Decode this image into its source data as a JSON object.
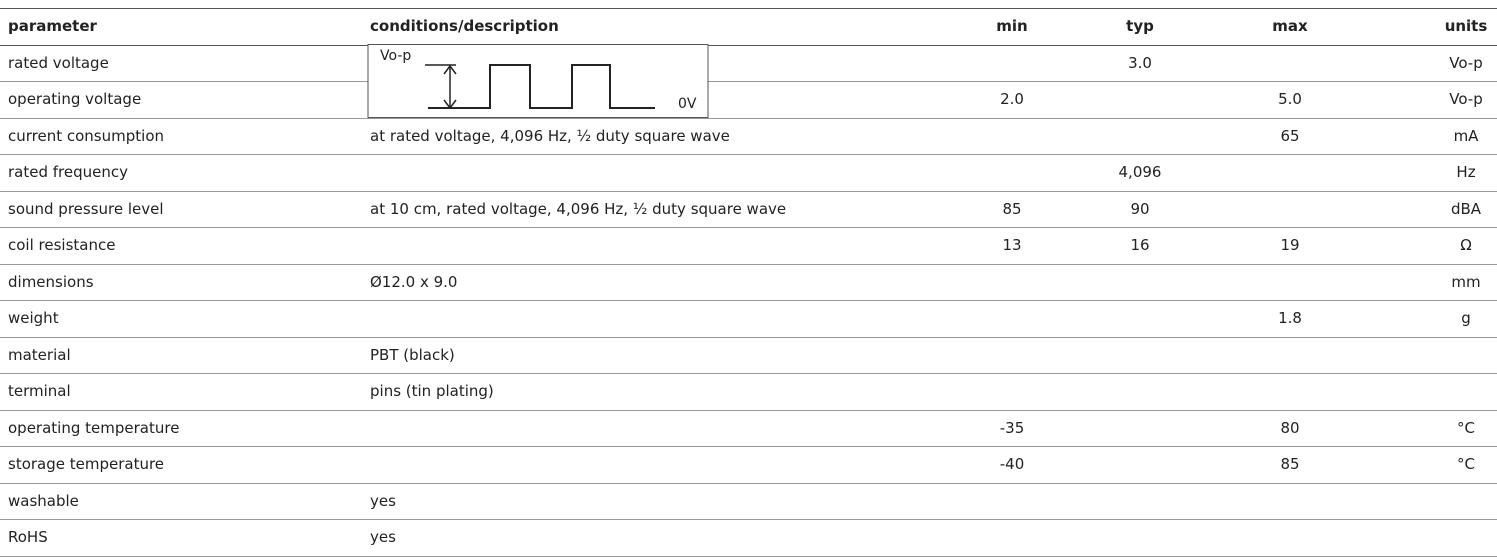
{
  "table": {
    "header": [
      "parameter",
      "conditions/description",
      "min",
      "typ",
      "max",
      "units"
    ],
    "rows": [
      {
        "parameter": "rated voltage",
        "typ": "3.0",
        "units": "Vo-p"
      },
      {
        "parameter": "operating voltage",
        "min": "2.0",
        "max": "5.0",
        "units": "Vo-p"
      },
      {
        "parameter": "current consumption",
        "conditions": "at rated voltage, 4,096 Hz, ½ duty square wave",
        "max": "65",
        "units": "mA"
      },
      {
        "parameter": "rated frequency",
        "typ": "4,096",
        "units": "Hz"
      },
      {
        "parameter": "sound pressure level",
        "conditions": "at 10 cm, rated voltage, 4,096 Hz, ½ duty square wave",
        "min": "85",
        "typ": "90",
        "units": "dBA"
      },
      {
        "parameter": "coil resistance",
        "min": "13",
        "typ": "16",
        "max": "19",
        "units": "Ω"
      },
      {
        "parameter": "dimensions",
        "conditions": "Ø12.0 x 9.0",
        "units": "mm"
      },
      {
        "parameter": "weight",
        "max": "1.8",
        "units": "g"
      },
      {
        "parameter": "material",
        "conditions": "PBT (black)"
      },
      {
        "parameter": "terminal",
        "conditions": "pins (tin plating)"
      },
      {
        "parameter": "operating temperature",
        "min": "-35",
        "max": "80",
        "units": "°C"
      },
      {
        "parameter": "storage temperature",
        "min": "-40",
        "max": "85",
        "units": "°C"
      },
      {
        "parameter": "washable",
        "conditions": "yes"
      },
      {
        "parameter": "RoHS",
        "conditions": "yes"
      }
    ]
  },
  "diagram": {
    "top_label": "Vo-p",
    "bottom_label": "0V"
  }
}
